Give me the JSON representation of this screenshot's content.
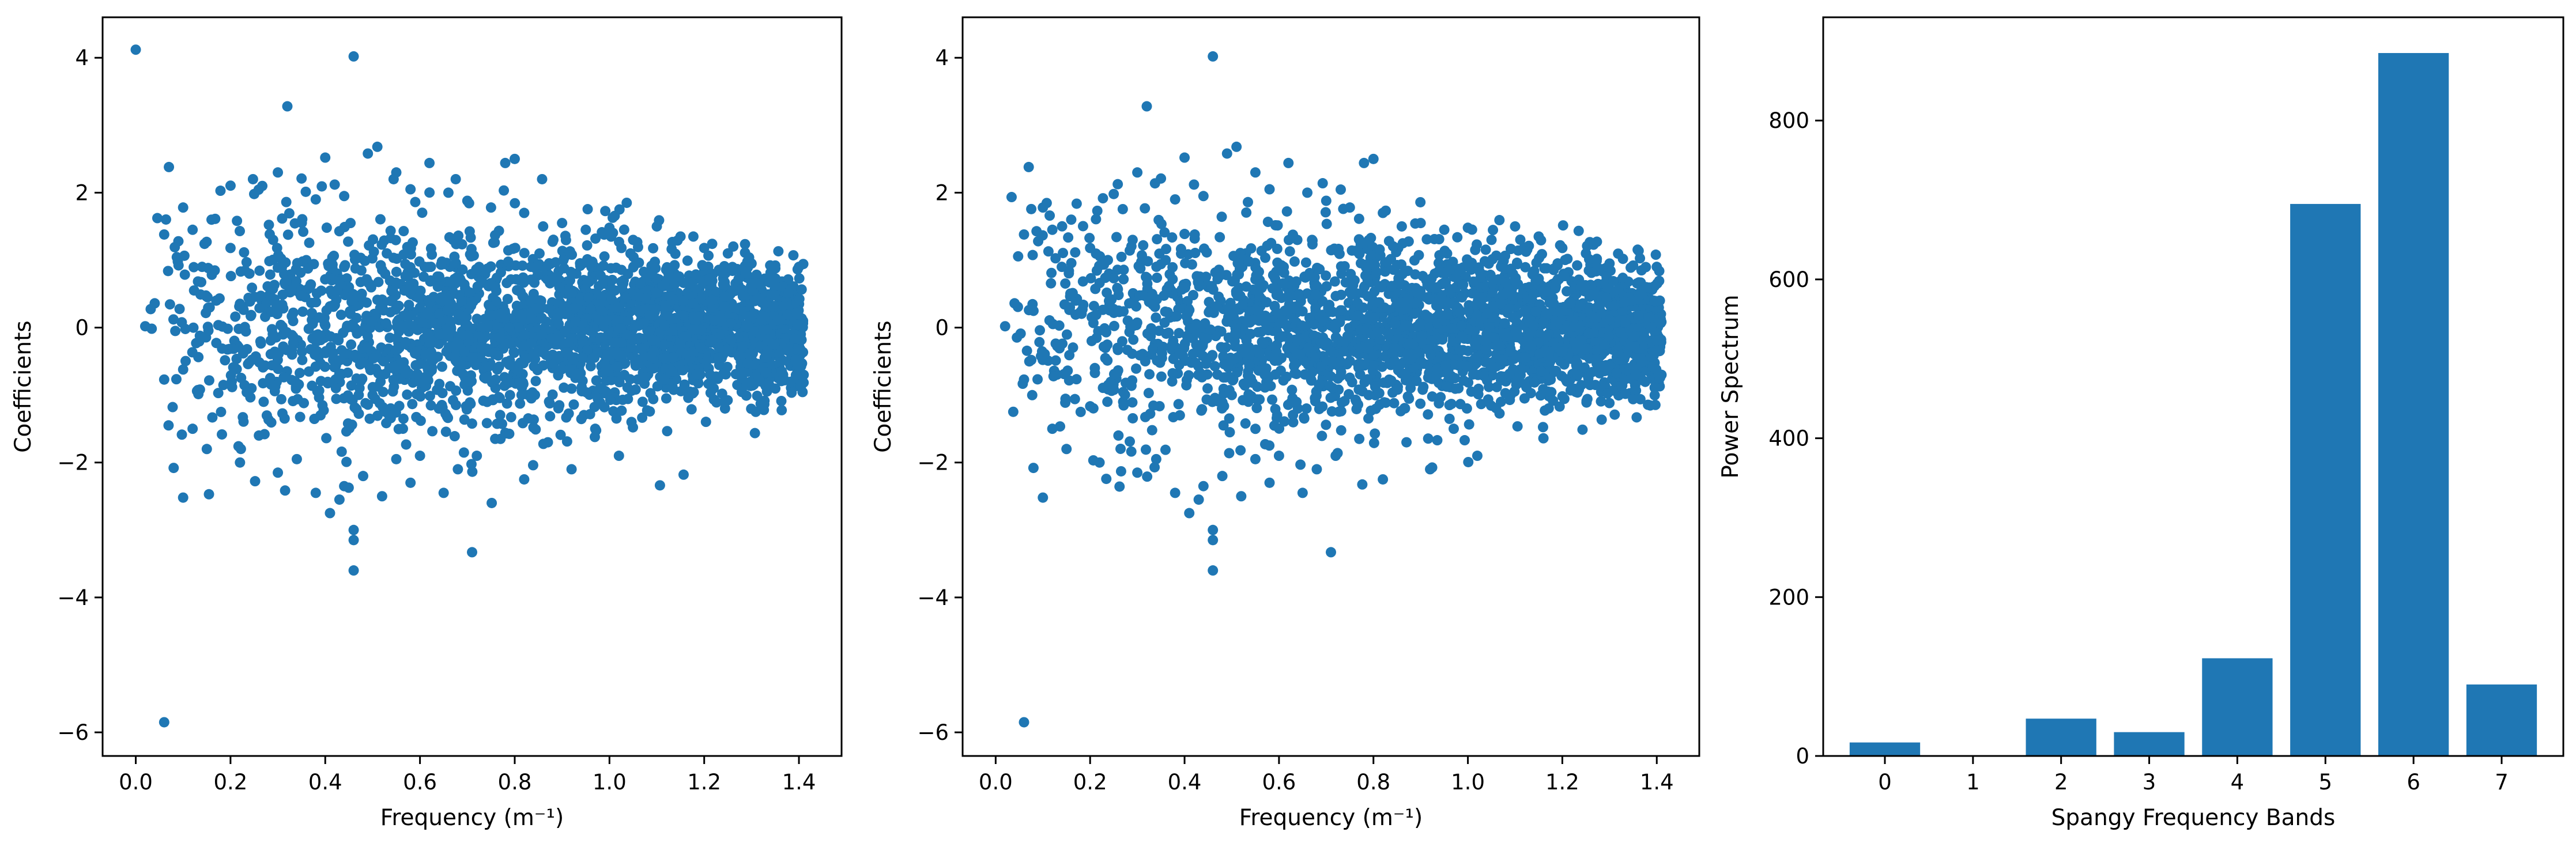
{
  "colors": {
    "series": "#1f77b4",
    "axes": "#000000",
    "background": "#ffffff"
  },
  "chart_data": [
    {
      "type": "scatter",
      "title": "",
      "xlabel": "Frequency (m⁻¹)",
      "ylabel": "Coefficients",
      "xlim": [
        -0.07,
        1.49
      ],
      "ylim": [
        -6.35,
        4.6
      ],
      "xticks": [
        0.0,
        0.2,
        0.4,
        0.6,
        0.8,
        1.0,
        1.2,
        1.4
      ],
      "xtick_labels": [
        "0.0",
        "0.2",
        "0.4",
        "0.6",
        "0.8",
        "1.0",
        "1.2",
        "1.4"
      ],
      "yticks": [
        -6,
        -4,
        -2,
        0,
        2,
        4
      ],
      "ytick_labels": [
        "−6",
        "−4",
        "−2",
        "0",
        "2",
        "4"
      ],
      "grid": false,
      "legend": "none",
      "points": [
        [
          0.0,
          4.12
        ],
        [
          0.46,
          4.02
        ],
        [
          0.32,
          3.28
        ],
        [
          0.06,
          -5.85
        ],
        [
          0.71,
          -3.33
        ],
        [
          0.46,
          -3.6
        ],
        [
          0.46,
          -3.0
        ],
        [
          0.46,
          -3.15
        ],
        [
          0.07,
          2.38
        ],
        [
          0.51,
          2.68
        ],
        [
          0.49,
          2.58
        ],
        [
          0.8,
          2.5
        ],
        [
          0.78,
          2.44
        ],
        [
          0.62,
          2.44
        ],
        [
          0.4,
          2.52
        ],
        [
          0.1,
          1.78
        ],
        [
          0.08,
          -2.08
        ],
        [
          0.1,
          -2.52
        ],
        [
          0.04,
          0.36
        ],
        [
          0.02,
          0.02
        ],
        [
          0.06,
          -0.77
        ],
        [
          0.06,
          1.38
        ],
        [
          0.09,
          1.28
        ],
        [
          0.12,
          1.45
        ],
        [
          0.16,
          1.6
        ],
        [
          0.2,
          1.18
        ],
        [
          0.25,
          1.98
        ],
        [
          0.3,
          2.3
        ],
        [
          0.35,
          2.21
        ],
        [
          0.38,
          1.9
        ],
        [
          0.42,
          2.12
        ],
        [
          0.44,
          1.95
        ],
        [
          0.55,
          2.3
        ],
        [
          0.58,
          2.05
        ],
        [
          0.66,
          2.0
        ],
        [
          0.7,
          1.88
        ],
        [
          0.75,
          1.78
        ],
        [
          0.82,
          1.7
        ],
        [
          0.86,
          1.5
        ],
        [
          0.9,
          1.55
        ],
        [
          0.95,
          1.45
        ],
        [
          1.0,
          1.48
        ],
        [
          1.05,
          1.3
        ],
        [
          1.1,
          1.5
        ],
        [
          1.15,
          1.35
        ],
        [
          1.2,
          1.18
        ],
        [
          1.25,
          1.1
        ],
        [
          1.3,
          0.95
        ],
        [
          1.35,
          0.92
        ],
        [
          1.4,
          0.9
        ],
        [
          0.12,
          -1.5
        ],
        [
          0.15,
          -1.8
        ],
        [
          0.18,
          -1.25
        ],
        [
          0.22,
          -2.0
        ],
        [
          0.26,
          -1.6
        ],
        [
          0.3,
          -2.15
        ],
        [
          0.34,
          -1.95
        ],
        [
          0.38,
          -2.45
        ],
        [
          0.41,
          -2.75
        ],
        [
          0.43,
          -2.55
        ],
        [
          0.44,
          -2.35
        ],
        [
          0.48,
          -2.2
        ],
        [
          0.52,
          -2.5
        ],
        [
          0.55,
          -1.95
        ],
        [
          0.58,
          -2.3
        ],
        [
          0.6,
          -1.9
        ],
        [
          0.65,
          -2.45
        ],
        [
          0.68,
          -2.1
        ],
        [
          0.72,
          -1.9
        ],
        [
          0.77,
          -1.65
        ],
        [
          0.82,
          -2.25
        ],
        [
          0.87,
          -1.7
        ],
        [
          0.92,
          -2.1
        ],
        [
          0.97,
          -1.5
        ],
        [
          1.02,
          -1.9
        ],
        [
          1.07,
          -1.1
        ],
        [
          1.12,
          -1.05
        ],
        [
          1.17,
          -0.95
        ],
        [
          1.22,
          -0.9
        ],
        [
          1.27,
          -0.85
        ],
        [
          1.32,
          -0.8
        ],
        [
          1.37,
          -0.78
        ],
        [
          1.41,
          -0.7
        ],
        [
          0.14,
          0.9
        ],
        [
          0.17,
          0.4
        ],
        [
          0.21,
          -0.6
        ],
        [
          0.24,
          0.8
        ],
        [
          0.27,
          -1.1
        ],
        [
          0.29,
          1.3
        ],
        [
          0.33,
          -0.4
        ],
        [
          0.36,
          1.0
        ],
        [
          0.39,
          -1.3
        ],
        [
          0.45,
          0.6
        ],
        [
          0.5,
          -1.0
        ],
        [
          0.53,
          1.1
        ],
        [
          0.57,
          -0.7
        ],
        [
          0.61,
          0.9
        ],
        [
          0.64,
          -1.2
        ],
        [
          0.67,
          1.3
        ],
        [
          0.73,
          -0.5
        ],
        [
          0.76,
          0.7
        ],
        [
          0.79,
          -1.0
        ],
        [
          0.84,
          0.5
        ],
        [
          0.88,
          -0.6
        ],
        [
          0.93,
          0.8
        ],
        [
          0.98,
          -0.9
        ],
        [
          1.03,
          0.7
        ],
        [
          1.08,
          -0.5
        ],
        [
          1.13,
          0.6
        ],
        [
          1.18,
          -0.4
        ],
        [
          1.23,
          0.5
        ],
        [
          1.28,
          -0.55
        ],
        [
          1.33,
          0.45
        ],
        [
          1.38,
          -0.3
        ]
      ]
    },
    {
      "type": "scatter",
      "title": "",
      "xlabel": "Frequency (m⁻¹)",
      "ylabel": "Coefficients",
      "xlim": [
        -0.07,
        1.49
      ],
      "ylim": [
        -6.35,
        4.6
      ],
      "xticks": [
        0.0,
        0.2,
        0.4,
        0.6,
        0.8,
        1.0,
        1.2,
        1.4
      ],
      "xtick_labels": [
        "0.0",
        "0.2",
        "0.4",
        "0.6",
        "0.8",
        "1.0",
        "1.2",
        "1.4"
      ],
      "yticks": [
        -6,
        -4,
        -2,
        0,
        2,
        4
      ],
      "ytick_labels": [
        "−6",
        "−4",
        "−2",
        "0",
        "2",
        "4"
      ],
      "grid": false,
      "legend": "none",
      "points": [
        [
          0.46,
          4.02
        ],
        [
          0.32,
          3.28
        ],
        [
          0.06,
          -5.85
        ],
        [
          0.71,
          -3.33
        ],
        [
          0.46,
          -3.6
        ],
        [
          0.46,
          -3.0
        ],
        [
          0.46,
          -3.15
        ],
        [
          0.07,
          2.38
        ],
        [
          0.51,
          2.68
        ],
        [
          0.49,
          2.58
        ],
        [
          0.8,
          2.5
        ],
        [
          0.78,
          2.44
        ],
        [
          0.62,
          2.44
        ],
        [
          0.4,
          2.52
        ],
        [
          0.1,
          1.78
        ],
        [
          0.08,
          -2.08
        ],
        [
          0.1,
          -2.52
        ],
        [
          0.04,
          0.36
        ],
        [
          0.02,
          0.02
        ],
        [
          0.06,
          -0.77
        ],
        [
          0.06,
          1.38
        ],
        [
          0.09,
          1.28
        ],
        [
          0.12,
          1.45
        ],
        [
          0.16,
          1.6
        ],
        [
          0.2,
          1.18
        ],
        [
          0.25,
          1.98
        ],
        [
          0.3,
          2.3
        ],
        [
          0.35,
          2.21
        ],
        [
          0.38,
          1.9
        ],
        [
          0.42,
          2.12
        ],
        [
          0.44,
          1.95
        ],
        [
          0.55,
          2.3
        ],
        [
          0.58,
          2.05
        ],
        [
          0.66,
          2.0
        ],
        [
          0.7,
          1.88
        ],
        [
          0.75,
          1.78
        ],
        [
          0.82,
          1.7
        ],
        [
          0.86,
          1.5
        ],
        [
          0.9,
          1.55
        ],
        [
          0.95,
          1.45
        ],
        [
          1.0,
          1.48
        ],
        [
          1.05,
          1.3
        ],
        [
          1.1,
          1.5
        ],
        [
          1.15,
          1.35
        ],
        [
          1.2,
          1.18
        ],
        [
          1.25,
          1.1
        ],
        [
          1.3,
          0.95
        ],
        [
          1.35,
          0.92
        ],
        [
          1.4,
          0.9
        ],
        [
          0.12,
          -1.5
        ],
        [
          0.15,
          -1.8
        ],
        [
          0.18,
          -1.25
        ],
        [
          0.22,
          -2.0
        ],
        [
          0.26,
          -1.6
        ],
        [
          0.3,
          -2.15
        ],
        [
          0.34,
          -1.95
        ],
        [
          0.38,
          -2.45
        ],
        [
          0.41,
          -2.75
        ],
        [
          0.43,
          -2.55
        ],
        [
          0.44,
          -2.35
        ],
        [
          0.48,
          -2.2
        ],
        [
          0.52,
          -2.5
        ],
        [
          0.55,
          -1.95
        ],
        [
          0.58,
          -2.3
        ],
        [
          0.6,
          -1.9
        ],
        [
          0.65,
          -2.45
        ],
        [
          0.68,
          -2.1
        ],
        [
          0.72,
          -1.9
        ],
        [
          0.77,
          -1.65
        ],
        [
          0.82,
          -2.25
        ],
        [
          0.87,
          -1.7
        ],
        [
          0.92,
          -2.1
        ],
        [
          0.97,
          -1.5
        ],
        [
          1.02,
          -1.9
        ],
        [
          1.07,
          -1.1
        ],
        [
          1.12,
          -1.05
        ],
        [
          1.17,
          -0.95
        ],
        [
          1.22,
          -0.9
        ],
        [
          1.27,
          -0.85
        ],
        [
          1.32,
          -0.8
        ],
        [
          1.37,
          -0.78
        ],
        [
          1.41,
          -0.7
        ],
        [
          0.14,
          0.9
        ],
        [
          0.17,
          0.4
        ],
        [
          0.21,
          -0.6
        ],
        [
          0.24,
          0.8
        ],
        [
          0.27,
          -1.1
        ],
        [
          0.29,
          1.3
        ],
        [
          0.33,
          -0.4
        ],
        [
          0.36,
          1.0
        ],
        [
          0.39,
          -1.3
        ],
        [
          0.45,
          0.6
        ],
        [
          0.5,
          -1.0
        ],
        [
          0.53,
          1.1
        ],
        [
          0.57,
          -0.7
        ],
        [
          0.61,
          0.9
        ],
        [
          0.64,
          -1.2
        ],
        [
          0.67,
          1.3
        ],
        [
          0.73,
          -0.5
        ],
        [
          0.76,
          0.7
        ],
        [
          0.79,
          -1.0
        ],
        [
          0.84,
          0.5
        ],
        [
          0.88,
          -0.6
        ],
        [
          0.93,
          0.8
        ],
        [
          0.98,
          -0.9
        ],
        [
          1.03,
          0.7
        ],
        [
          1.08,
          -0.5
        ],
        [
          1.13,
          0.6
        ],
        [
          1.18,
          -0.4
        ],
        [
          1.23,
          0.5
        ],
        [
          1.28,
          -0.55
        ],
        [
          1.33,
          0.45
        ],
        [
          1.38,
          -0.3
        ]
      ]
    },
    {
      "type": "bar",
      "title": "",
      "xlabel": "Spangy Frequency Bands",
      "ylabel": "Power Spectrum",
      "categories": [
        "0",
        "1",
        "2",
        "3",
        "4",
        "5",
        "6",
        "7"
      ],
      "values": [
        17,
        0,
        47,
        30,
        123,
        695,
        885,
        90
      ],
      "ylim": [
        0,
        930
      ],
      "yticks": [
        0,
        200,
        400,
        600,
        800
      ],
      "ytick_labels": [
        "0",
        "200",
        "400",
        "600",
        "800"
      ],
      "grid": false,
      "legend": "none"
    }
  ]
}
